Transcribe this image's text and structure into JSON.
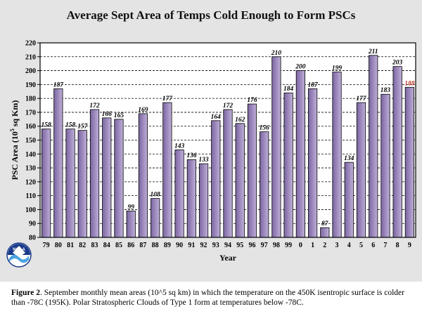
{
  "chart_data": {
    "type": "bar",
    "title": "Average Sept Area of Temps Cold Enough to Form PSCs",
    "xlabel": "Year",
    "ylabel": "PSC Area (10^5 sq Km)",
    "ylabel_main": "PSC Area (10",
    "ylabel_exp": "5",
    "ylabel_unit": " sq Km)",
    "ylim": [
      80,
      220
    ],
    "yticks": [
      80,
      90,
      100,
      110,
      120,
      130,
      140,
      150,
      160,
      170,
      180,
      190,
      200,
      210,
      220
    ],
    "grid": "horizontal dashed",
    "categories": [
      "79",
      "80",
      "81",
      "82",
      "83",
      "84",
      "85",
      "86",
      "87",
      "88",
      "89",
      "90",
      "91",
      "92",
      "93",
      "94",
      "95",
      "96",
      "97",
      "98",
      "99",
      "0",
      "1",
      "2",
      "3",
      "4",
      "5",
      "6",
      "7",
      "8",
      "9"
    ],
    "values": [
      158,
      187,
      158,
      157,
      172,
      166,
      165,
      99,
      169,
      108,
      177,
      143,
      136,
      133,
      164,
      172,
      162,
      176,
      156,
      210,
      184,
      200,
      187,
      87,
      199,
      134,
      177,
      211,
      183,
      203,
      188
    ],
    "highlight_index": 30,
    "bar_color": "#9a86bb",
    "highlight_label_color": "#c0392b"
  },
  "caption": {
    "label": "Figure 2",
    "text": ". September monthly mean areas (10^5 sq km) in which the temperature on the 450K isentropic surface is colder than -78C (195K).  Polar Stratospheric Clouds of Type 1 form at temperatures below -78C."
  },
  "logo": {
    "text": "NOAA",
    "icon": "noaa-logo"
  }
}
